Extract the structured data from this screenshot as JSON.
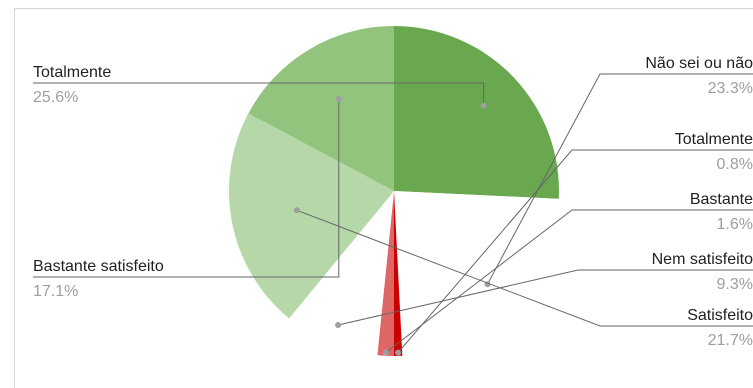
{
  "chart_data": {
    "type": "pie",
    "slices": [
      {
        "label": "Totalmente",
        "value": 25.6,
        "value_label": "25.6%",
        "color": "#6aa84f"
      },
      {
        "label": "Não sei ou não",
        "value": 23.3,
        "value_label": "23.3%",
        "color": "#ffffff"
      },
      {
        "label": "Totalmente",
        "value": 0.8,
        "value_label": "0.8%",
        "color": "#cc0000"
      },
      {
        "label": "Bastante",
        "value": 1.6,
        "value_label": "1.6%",
        "color": "#e06666"
      },
      {
        "label": "Nem satisfeito",
        "value": 9.3,
        "value_label": "9.3%",
        "color": "#ffffff"
      },
      {
        "label": "Satisfeito",
        "value": 21.7,
        "value_label": "21.7%",
        "color": "#b6d7a8"
      },
      {
        "label": "Bastante satisfeito",
        "value": 17.1,
        "value_label": "17.1%",
        "color": "#93c47d"
      }
    ]
  }
}
